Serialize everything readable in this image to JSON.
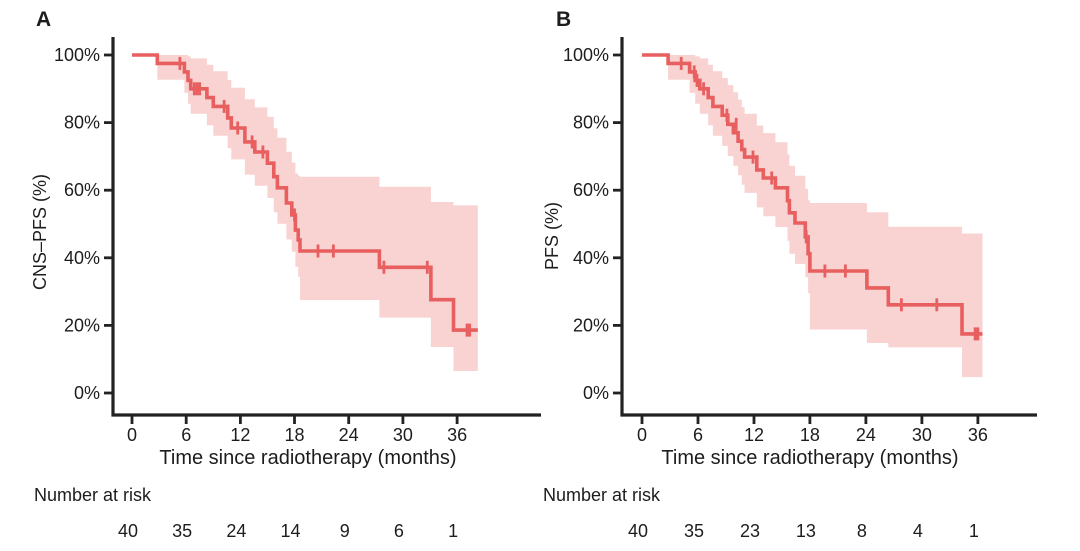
{
  "colors": {
    "curve": "#e85f60",
    "ci_band": "#f9d2d2",
    "axis": "#222222",
    "text": "#1d1d1d"
  },
  "chart_data": [
    {
      "type": "line",
      "subtype": "kaplan-meier-step",
      "panel_label": "A",
      "xlabel": "Time since radiotherapy (months)",
      "ylabel": "CNS–PFS (%)",
      "xlim": [
        0,
        38.5
      ],
      "ylim": [
        0,
        100
      ],
      "grid": false,
      "legend_position": "none",
      "x_ticks": [
        0,
        6,
        12,
        18,
        24,
        30,
        36
      ],
      "y_ticks_percent": [
        100,
        80,
        60,
        40,
        20,
        0
      ],
      "survival_steps": [
        [
          0,
          100
        ],
        [
          2.8,
          97.5
        ],
        [
          5.8,
          95.0
        ],
        [
          6.2,
          92.5
        ],
        [
          6.5,
          90.0
        ],
        [
          8.3,
          87.4
        ],
        [
          9.0,
          84.8
        ],
        [
          10.6,
          81.4
        ],
        [
          11.0,
          78.4
        ],
        [
          12.5,
          74.3
        ],
        [
          13.6,
          71.3
        ],
        [
          15.0,
          68.0
        ],
        [
          15.7,
          64.0
        ],
        [
          16.1,
          60.7
        ],
        [
          17.1,
          56.2
        ],
        [
          17.7,
          52.7
        ],
        [
          18.1,
          48.2
        ],
        [
          18.4,
          45.3
        ],
        [
          18.6,
          42.0
        ],
        [
          27.4,
          37.2
        ],
        [
          33.1,
          27.6
        ],
        [
          35.6,
          18.6
        ]
      ],
      "end_time": 38.3,
      "censor_marks": [
        [
          5.3,
          97.5
        ],
        [
          6.9,
          90.0
        ],
        [
          7.2,
          90.0
        ],
        [
          7.5,
          90.0
        ],
        [
          10.2,
          84.8
        ],
        [
          11.7,
          78.4
        ],
        [
          13.3,
          74.3
        ],
        [
          14.5,
          71.3
        ],
        [
          18.0,
          52.7
        ],
        [
          20.6,
          42.0
        ],
        [
          22.3,
          42.0
        ],
        [
          27.9,
          37.2
        ],
        [
          32.7,
          37.2
        ],
        [
          37.1,
          18.6
        ],
        [
          37.4,
          18.6
        ]
      ],
      "ci_band": [
        [
          2.8,
          92.7,
          100
        ],
        [
          5.8,
          88.8,
          100
        ],
        [
          6.2,
          85.6,
          99.6
        ],
        [
          6.5,
          82.6,
          99.0
        ],
        [
          8.3,
          79.2,
          97.1
        ],
        [
          9.0,
          76.1,
          95.2
        ],
        [
          10.6,
          72.4,
          92.6
        ],
        [
          11.0,
          69.1,
          90.3
        ],
        [
          12.5,
          64.6,
          86.9
        ],
        [
          13.6,
          61.3,
          84.5
        ],
        [
          15.0,
          57.7,
          81.7
        ],
        [
          15.7,
          53.5,
          78.3
        ],
        [
          16.1,
          50.1,
          75.5
        ],
        [
          17.1,
          45.4,
          71.4
        ],
        [
          17.7,
          41.8,
          68.2
        ],
        [
          18.1,
          37.3,
          64.9
        ],
        [
          18.4,
          34.4,
          64.3
        ],
        [
          18.6,
          27.5,
          64.0
        ],
        [
          27.4,
          22.3,
          61.0
        ],
        [
          33.1,
          13.6,
          56.5
        ],
        [
          35.6,
          6.5,
          55.5
        ]
      ],
      "number_at_risk": {
        "label": "Number at risk",
        "times": [
          0,
          6,
          12,
          18,
          24,
          30,
          36
        ],
        "counts": [
          40,
          35,
          24,
          14,
          9,
          6,
          1
        ]
      }
    },
    {
      "type": "line",
      "subtype": "kaplan-meier-step",
      "panel_label": "B",
      "xlabel": "Time since radiotherapy (months)",
      "ylabel": "PFS (%)",
      "xlim": [
        0,
        38.5
      ],
      "ylim": [
        0,
        100
      ],
      "grid": false,
      "legend_position": "none",
      "x_ticks": [
        0,
        6,
        12,
        18,
        24,
        30,
        36
      ],
      "y_ticks_percent": [
        100,
        80,
        60,
        40,
        20,
        0
      ],
      "survival_steps": [
        [
          0,
          100
        ],
        [
          2.8,
          97.5
        ],
        [
          5.1,
          95.0
        ],
        [
          5.7,
          92.5
        ],
        [
          6.2,
          90.0
        ],
        [
          7.1,
          87.4
        ],
        [
          7.6,
          84.8
        ],
        [
          8.6,
          82.2
        ],
        [
          9.2,
          79.5
        ],
        [
          9.8,
          77.0
        ],
        [
          10.3,
          74.5
        ],
        [
          10.7,
          72.0
        ],
        [
          11.0,
          69.8
        ],
        [
          12.3,
          66.0
        ],
        [
          13.0,
          63.6
        ],
        [
          14.3,
          60.7
        ],
        [
          15.6,
          56.9
        ],
        [
          15.8,
          53.3
        ],
        [
          16.4,
          50.3
        ],
        [
          17.5,
          46.2
        ],
        [
          17.8,
          41.2
        ],
        [
          18.0,
          36.1
        ],
        [
          24.1,
          31.1
        ],
        [
          26.4,
          26.1
        ],
        [
          34.3,
          17.5
        ]
      ],
      "end_time": 36.5,
      "censor_marks": [
        [
          4.2,
          97.5
        ],
        [
          5.6,
          95.0
        ],
        [
          5.9,
          92.5
        ],
        [
          6.6,
          90.0
        ],
        [
          9.1,
          82.2
        ],
        [
          10.1,
          79.5
        ],
        [
          11.9,
          69.8
        ],
        [
          13.9,
          63.6
        ],
        [
          17.6,
          46.2
        ],
        [
          19.6,
          36.1
        ],
        [
          21.8,
          36.1
        ],
        [
          27.8,
          26.1
        ],
        [
          31.6,
          26.1
        ],
        [
          35.7,
          17.5
        ],
        [
          36.0,
          17.5
        ]
      ],
      "ci_band": [
        [
          2.8,
          92.7,
          100
        ],
        [
          5.1,
          88.8,
          100
        ],
        [
          5.7,
          85.6,
          99.6
        ],
        [
          6.2,
          82.6,
          99.0
        ],
        [
          7.1,
          79.2,
          97.1
        ],
        [
          7.6,
          76.1,
          95.2
        ],
        [
          8.6,
          73.1,
          93.2
        ],
        [
          9.2,
          70.1,
          91.1
        ],
        [
          9.8,
          67.2,
          89.0
        ],
        [
          10.3,
          64.4,
          86.8
        ],
        [
          10.7,
          61.6,
          84.6
        ],
        [
          11.0,
          59.2,
          82.6
        ],
        [
          12.3,
          54.9,
          79.1
        ],
        [
          13.0,
          52.3,
          76.9
        ],
        [
          14.3,
          49.1,
          74.2
        ],
        [
          15.6,
          45.0,
          70.6
        ],
        [
          15.8,
          41.2,
          67.2
        ],
        [
          16.4,
          38.2,
          64.3
        ],
        [
          17.5,
          34.2,
          60.4
        ],
        [
          17.8,
          29.5,
          57.0
        ],
        [
          18.0,
          18.8,
          56.2
        ],
        [
          24.1,
          14.8,
          53.5
        ],
        [
          26.4,
          13.5,
          49.2
        ],
        [
          34.3,
          4.7,
          47.2
        ]
      ],
      "number_at_risk": {
        "label": "Number at risk",
        "times": [
          0,
          6,
          12,
          18,
          24,
          30,
          36
        ],
        "counts": [
          40,
          35,
          23,
          13,
          8,
          4,
          1
        ]
      }
    }
  ]
}
